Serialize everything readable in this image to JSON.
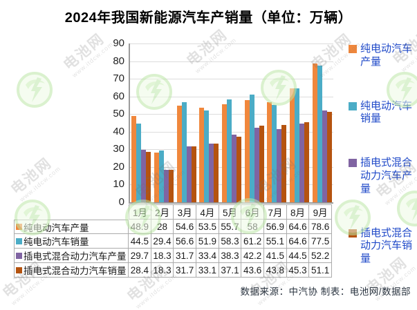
{
  "title": "2024年我国新能源汽车产销量（单位：万辆）",
  "footer": "数据来源：中汽协  制表：电池网/数据部",
  "watermark": {
    "brand": "电池网",
    "url": "www.itdcw.com"
  },
  "colors": {
    "bev_production": "#F0873C",
    "bev_sales": "#4BACC6",
    "phev_production": "#8064A2",
    "phev_sales": "#B5530F",
    "legend_text": "#1F49C8"
  },
  "chart_data": {
    "type": "bar",
    "title": "2024年我国新能源汽车产销量（单位：万辆）",
    "categories": [
      "1月",
      "2月",
      "3月",
      "4月",
      "5月",
      "6月",
      "7月",
      "8月",
      "9月"
    ],
    "series": [
      {
        "name": "纯电动汽车产量",
        "color": "#F0873C",
        "values": [
          48.9,
          28,
          54.6,
          53.5,
          55.7,
          58,
          56.9,
          64.6,
          78.6
        ]
      },
      {
        "name": "纯电动汽车销量",
        "color": "#4BACC6",
        "values": [
          44.5,
          29.4,
          56.6,
          51.9,
          58.3,
          61.2,
          55.1,
          64.6,
          77.5
        ]
      },
      {
        "name": "插电式混合动力汽车产量",
        "color": "#8064A2",
        "values": [
          29.7,
          18.3,
          31.7,
          33.4,
          38.3,
          42.2,
          41.5,
          44.5,
          52.2
        ]
      },
      {
        "name": "插电式混合动力汽车销量",
        "color": "#B5530F",
        "values": [
          28.4,
          18.3,
          31.7,
          33.1,
          37.1,
          43.6,
          43.8,
          45.3,
          51.1
        ]
      }
    ],
    "xlabel": "",
    "ylabel": "",
    "unit": "万辆",
    "ylim": [
      0,
      90
    ],
    "ytick_step": 10,
    "grid": true,
    "legend_position": "right",
    "data_table_attached": true
  }
}
